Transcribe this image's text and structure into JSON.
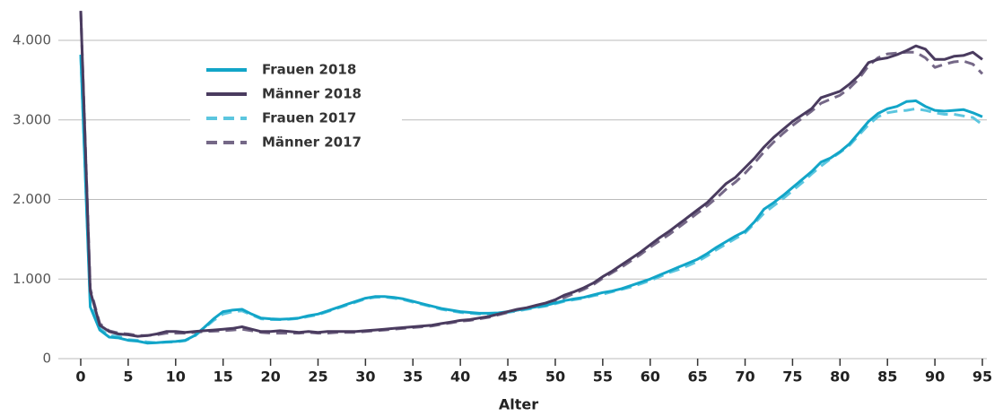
{
  "chart_data": {
    "type": "line",
    "x_label": "Alter",
    "x": [
      0,
      1,
      2,
      3,
      4,
      5,
      6,
      7,
      8,
      9,
      10,
      11,
      12,
      13,
      14,
      15,
      16,
      17,
      18,
      19,
      20,
      21,
      22,
      23,
      24,
      25,
      26,
      27,
      28,
      29,
      30,
      31,
      32,
      33,
      34,
      35,
      36,
      37,
      38,
      39,
      40,
      41,
      42,
      43,
      44,
      45,
      46,
      47,
      48,
      49,
      50,
      51,
      52,
      53,
      54,
      55,
      56,
      57,
      58,
      59,
      60,
      61,
      62,
      63,
      64,
      65,
      66,
      67,
      68,
      69,
      70,
      71,
      72,
      73,
      74,
      75,
      76,
      77,
      78,
      79,
      80,
      81,
      82,
      83,
      84,
      85,
      86,
      87,
      88,
      89,
      90,
      91,
      92,
      93,
      94,
      95
    ],
    "xlim": [
      0,
      95
    ],
    "xticks": [
      0,
      5,
      10,
      15,
      20,
      25,
      30,
      35,
      40,
      45,
      50,
      55,
      60,
      65,
      70,
      75,
      80,
      85,
      90,
      95
    ],
    "ylim": [
      0,
      4000
    ],
    "yticks": [
      0,
      {
        "value": 1000,
        "label": "1.000"
      },
      {
        "value": 2000,
        "label": "2.000"
      },
      {
        "value": 3000,
        "label": "3.000"
      },
      {
        "value": 4000,
        "label": "4.000"
      }
    ],
    "grid": true,
    "legend": "upper left",
    "series": [
      {
        "name": "Frauen 2018",
        "color": "#12a5c8",
        "dashed": false,
        "values": [
          3820,
          650,
          360,
          270,
          260,
          230,
          220,
          195,
          200,
          210,
          215,
          230,
          290,
          390,
          500,
          590,
          610,
          620,
          560,
          510,
          500,
          495,
          500,
          510,
          540,
          560,
          600,
          640,
          680,
          720,
          760,
          780,
          780,
          770,
          750,
          720,
          690,
          660,
          630,
          610,
          590,
          580,
          570,
          570,
          575,
          590,
          610,
          630,
          650,
          670,
          700,
          730,
          750,
          770,
          800,
          830,
          850,
          880,
          920,
          960,
          1000,
          1050,
          1100,
          1150,
          1200,
          1250,
          1320,
          1400,
          1470,
          1540,
          1600,
          1720,
          1880,
          1960,
          2050,
          2150,
          2250,
          2350,
          2470,
          2520,
          2600,
          2700,
          2840,
          2980,
          3080,
          3140,
          3170,
          3230,
          3240,
          3170,
          3120,
          3110,
          3120,
          3130,
          3090,
          3040
        ]
      },
      {
        "name": "Männer 2018",
        "color": "#4a3b5f",
        "dashed": false,
        "values": [
          4370,
          850,
          420,
          340,
          310,
          300,
          280,
          290,
          310,
          340,
          340,
          330,
          340,
          350,
          360,
          370,
          380,
          400,
          370,
          340,
          340,
          350,
          340,
          330,
          340,
          330,
          340,
          340,
          340,
          340,
          350,
          360,
          370,
          380,
          390,
          400,
          410,
          420,
          440,
          460,
          480,
          490,
          510,
          530,
          560,
          590,
          620,
          640,
          670,
          700,
          740,
          800,
          840,
          890,
          950,
          1030,
          1100,
          1180,
          1260,
          1340,
          1430,
          1520,
          1600,
          1690,
          1780,
          1870,
          1960,
          2080,
          2200,
          2280,
          2400,
          2520,
          2660,
          2780,
          2880,
          2980,
          3060,
          3140,
          3280,
          3320,
          3360,
          3450,
          3560,
          3720,
          3760,
          3780,
          3820,
          3870,
          3930,
          3890,
          3760,
          3760,
          3800,
          3810,
          3850,
          3760
        ]
      },
      {
        "name": "Frauen 2017",
        "color": "#5cc6df",
        "dashed": true,
        "values": [
          3820,
          700,
          380,
          290,
          280,
          240,
          230,
          210,
          200,
          205,
          210,
          225,
          280,
          380,
          480,
          560,
          590,
          600,
          550,
          500,
          490,
          490,
          495,
          505,
          530,
          550,
          590,
          630,
          670,
          710,
          750,
          770,
          775,
          760,
          740,
          710,
          680,
          650,
          620,
          600,
          580,
          570,
          560,
          560,
          570,
          580,
          600,
          620,
          640,
          660,
          690,
          720,
          740,
          760,
          790,
          810,
          840,
          870,
          900,
          940,
          980,
          1030,
          1080,
          1120,
          1170,
          1220,
          1290,
          1370,
          1440,
          1510,
          1580,
          1700,
          1830,
          1920,
          2010,
          2110,
          2210,
          2320,
          2420,
          2510,
          2590,
          2680,
          2810,
          2940,
          3040,
          3090,
          3110,
          3120,
          3140,
          3120,
          3090,
          3070,
          3070,
          3050,
          3030,
          2940
        ]
      },
      {
        "name": "Männer 2017",
        "color": "#756887",
        "dashed": true,
        "values": [
          4370,
          880,
          440,
          350,
          320,
          310,
          290,
          290,
          300,
          320,
          320,
          320,
          330,
          340,
          345,
          350,
          360,
          370,
          350,
          330,
          320,
          320,
          320,
          320,
          330,
          320,
          320,
          330,
          330,
          330,
          340,
          350,
          360,
          370,
          380,
          390,
          400,
          410,
          430,
          450,
          470,
          480,
          500,
          520,
          550,
          580,
          610,
          630,
          660,
          690,
          720,
          770,
          820,
          870,
          930,
          1010,
          1080,
          1150,
          1230,
          1310,
          1400,
          1480,
          1560,
          1650,
          1740,
          1830,
          1920,
          2020,
          2130,
          2220,
          2330,
          2460,
          2600,
          2720,
          2830,
          2930,
          3020,
          3110,
          3210,
          3260,
          3310,
          3400,
          3520,
          3680,
          3780,
          3830,
          3840,
          3850,
          3850,
          3780,
          3660,
          3700,
          3730,
          3740,
          3700,
          3580
        ]
      }
    ]
  }
}
